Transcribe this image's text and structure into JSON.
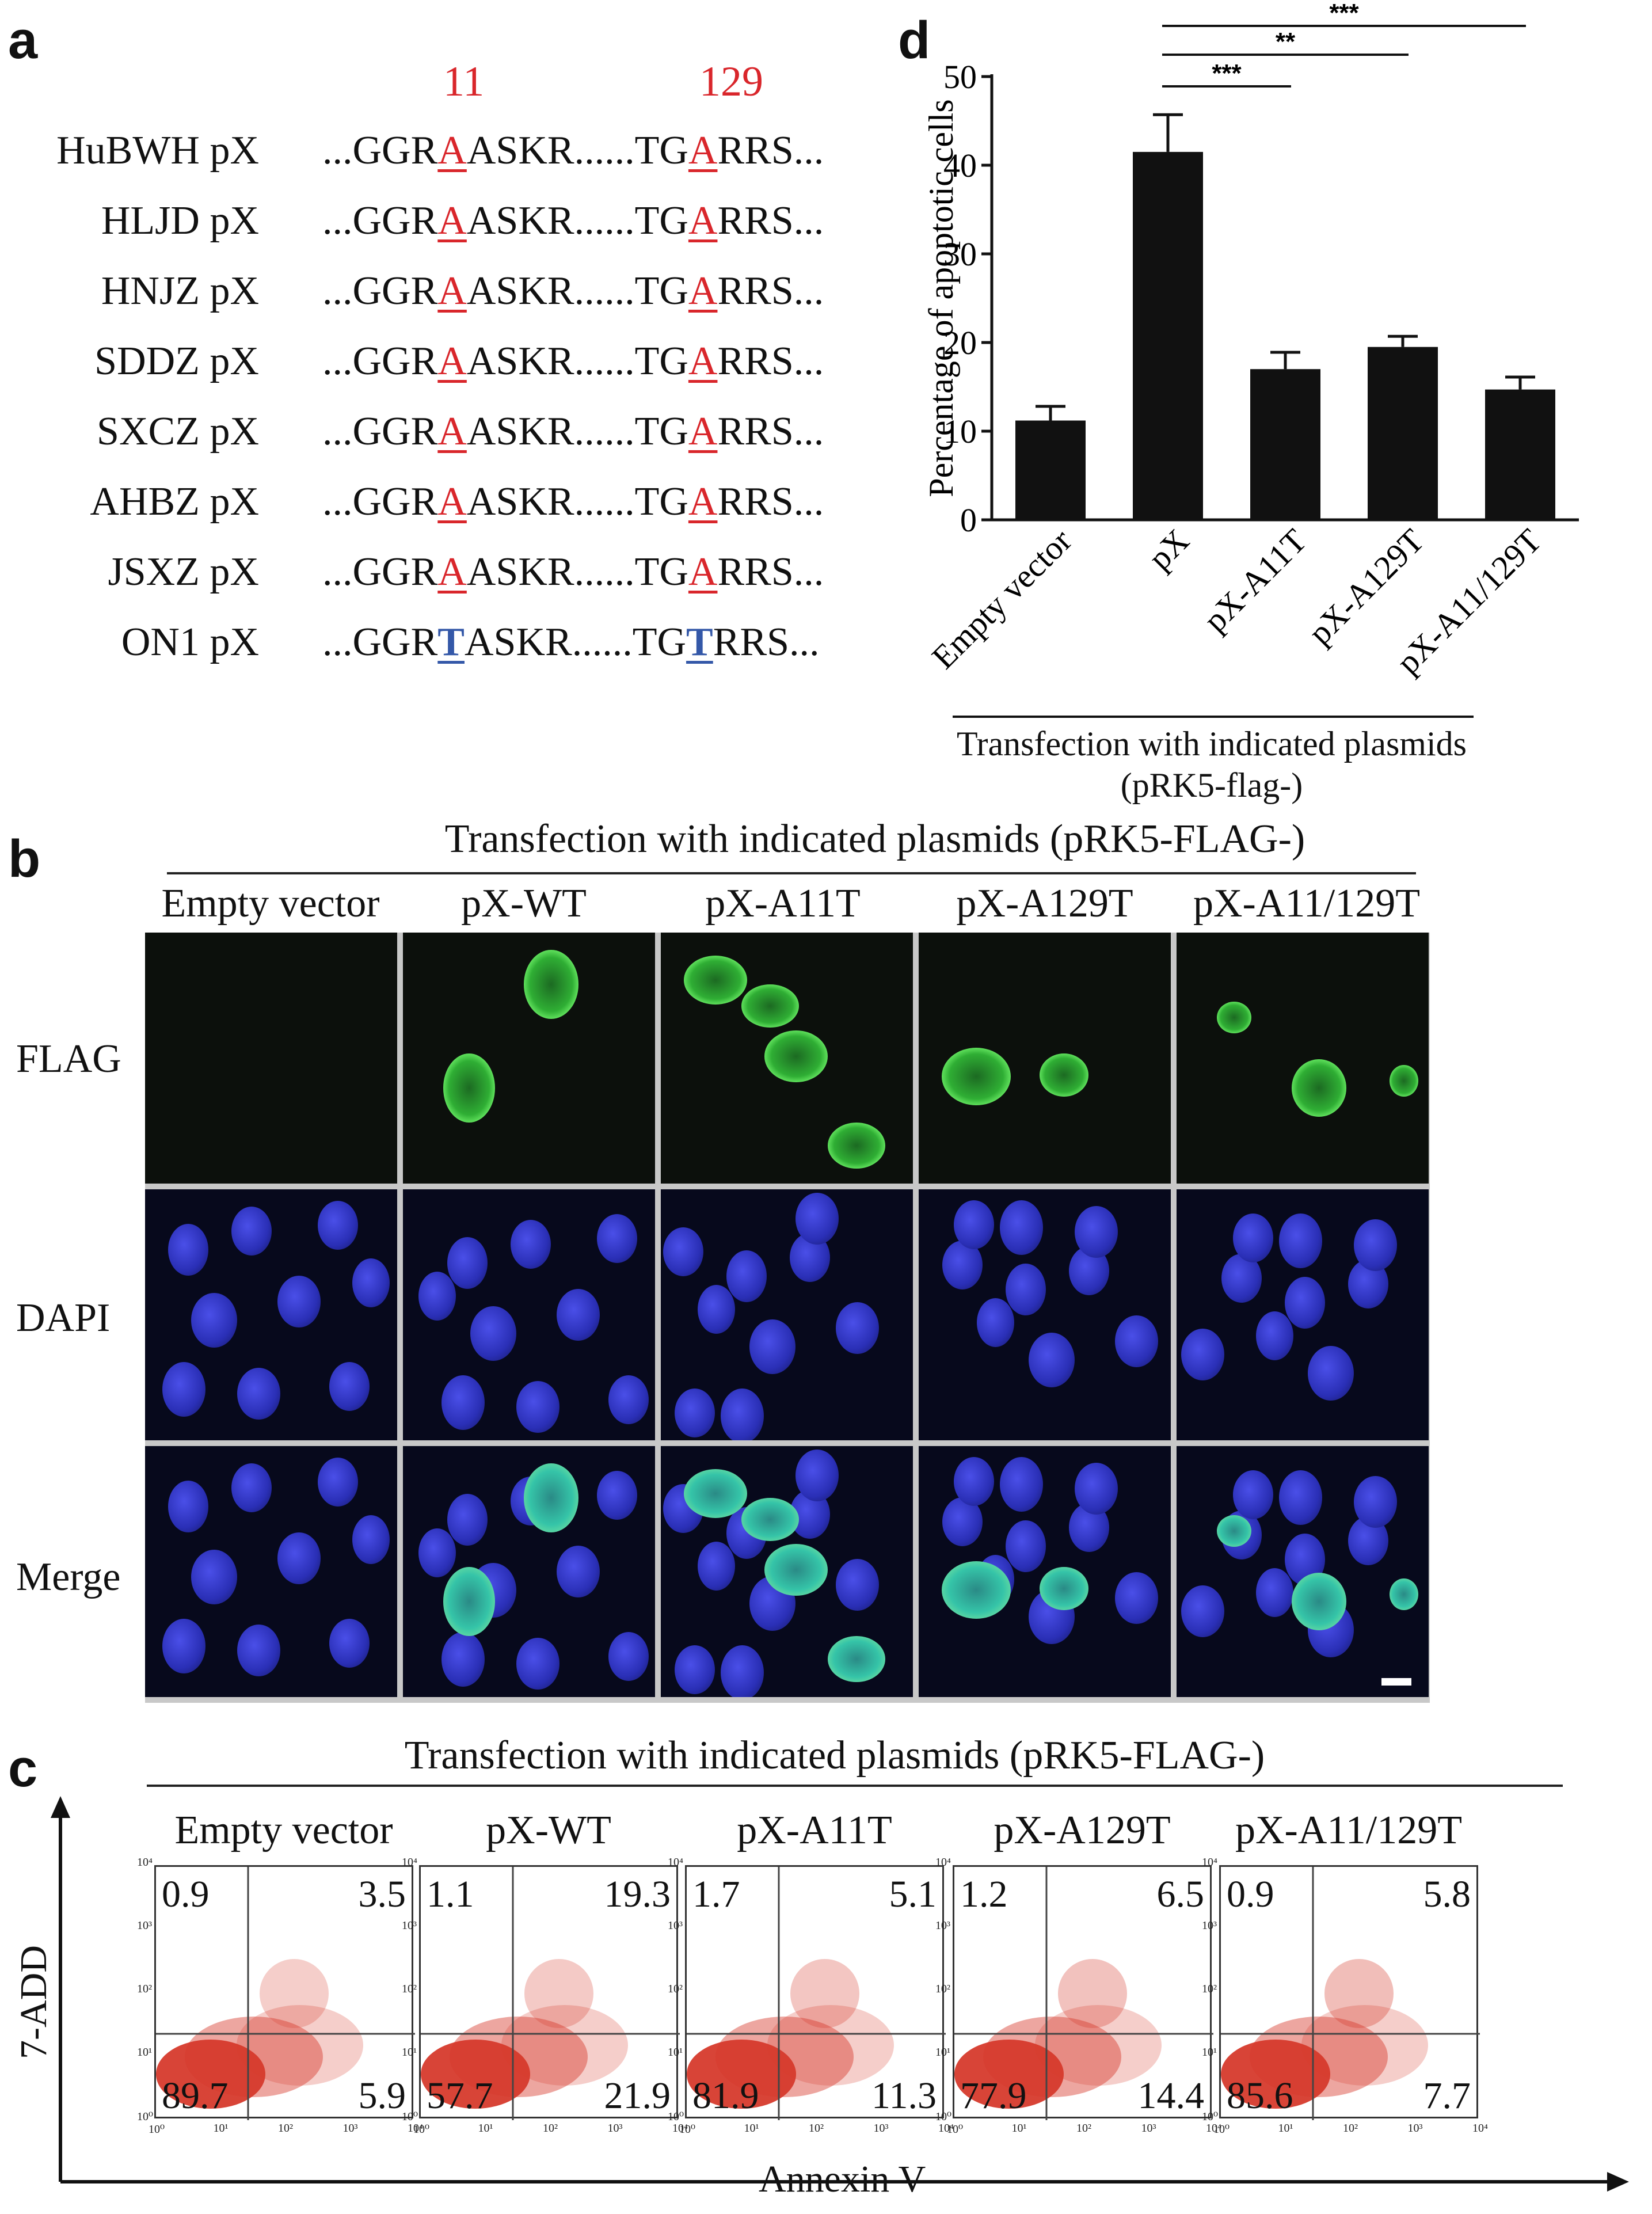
{
  "panels": {
    "a": "a",
    "b": "b",
    "c": "c",
    "d": "d"
  },
  "panel_a": {
    "positions": [
      "11",
      "129"
    ],
    "rows": [
      {
        "name": "HuBWH pX",
        "pre": "...GGR",
        "mut1": "A",
        "mid": "ASKR......TG",
        "mut2": "A",
        "post": "RRS...",
        "variant": "A"
      },
      {
        "name": "HLJD pX",
        "pre": "...GGR",
        "mut1": "A",
        "mid": "ASKR......TG",
        "mut2": "A",
        "post": "RRS...",
        "variant": "A"
      },
      {
        "name": "HNJZ pX",
        "pre": "...GGR",
        "mut1": "A",
        "mid": "ASKR......TG",
        "mut2": "A",
        "post": "RRS...",
        "variant": "A"
      },
      {
        "name": "SDDZ pX",
        "pre": "...GGR",
        "mut1": "A",
        "mid": "ASKR......TG",
        "mut2": "A",
        "post": "RRS...",
        "variant": "A"
      },
      {
        "name": "SXCZ pX",
        "pre": "...GGR",
        "mut1": "A",
        "mid": "ASKR......TG",
        "mut2": "A",
        "post": "RRS...",
        "variant": "A"
      },
      {
        "name": "AHBZ pX",
        "pre": "...GGR",
        "mut1": "A",
        "mid": "ASKR......TG",
        "mut2": "A",
        "post": "RRS...",
        "variant": "A"
      },
      {
        "name": "JSXZ pX",
        "pre": "...GGR",
        "mut1": "A",
        "mid": "ASKR......TG",
        "mut2": "A",
        "post": "RRS...",
        "variant": "A"
      },
      {
        "name": "ON1 pX",
        "pre": "...GGR",
        "mut1": "T",
        "mid": "ASKR......TG",
        "mut2": "T",
        "post": "RRS...",
        "variant": "T"
      }
    ],
    "colors": {
      "A": "#d9262b",
      "T": "#3458a8"
    }
  },
  "panel_b": {
    "header": "Transfection with indicated plasmids (pRK5-FLAG-)",
    "columns": [
      "Empty vector",
      "pX-WT",
      "pX-A11T",
      "pX-A129T",
      "pX-A11/129T"
    ],
    "rows": [
      "FLAG",
      "DAPI",
      "Merge"
    ]
  },
  "panel_c": {
    "header": "Transfection with indicated plasmids (pRK5-FLAG-)",
    "y_axis_label": "7-ADD",
    "x_axis_label": "Annexin V",
    "ticks": [
      "10⁰",
      "10¹",
      "10²",
      "10³",
      "10⁴"
    ],
    "plots": [
      {
        "title": "Empty vector",
        "ul": "0.9",
        "ur": "3.5",
        "ll": "89.7",
        "lr": "5.9"
      },
      {
        "title": "pX-WT",
        "ul": "1.1",
        "ur": "19.3",
        "ll": "57.7",
        "lr": "21.9"
      },
      {
        "title": "pX-A11T",
        "ul": "1.7",
        "ur": "5.1",
        "ll": "81.9",
        "lr": "11.3"
      },
      {
        "title": "pX-A129T",
        "ul": "1.2",
        "ur": "6.5",
        "ll": "77.9",
        "lr": "14.4"
      },
      {
        "title": "pX-A11/129T",
        "ul": "0.9",
        "ur": "5.8",
        "ll": "85.6",
        "lr": "7.7"
      }
    ]
  },
  "chart_data": {
    "type": "bar",
    "title": "",
    "categories": [
      "Empty vector",
      "pX",
      "pX-A11T",
      "pX-A129T",
      "pX-A11/129T"
    ],
    "values": [
      11.2,
      41.5,
      17.0,
      19.5,
      14.7
    ],
    "errors": [
      1.6,
      4.2,
      1.9,
      1.2,
      1.4
    ],
    "ylabel": "Percentage of apoptotic cells",
    "xlabel": "Transfection with indicated plasmids\n(pRK5-flag-)",
    "xlabel_line1": "Transfection with indicated plasmids",
    "xlabel_line2": "(pRK5-flag-)",
    "ylim": [
      0,
      50
    ],
    "yticks": [
      0,
      10,
      20,
      30,
      40,
      50
    ],
    "significance": [
      {
        "from": "pX",
        "to": "pX-A11T",
        "label": "***"
      },
      {
        "from": "pX",
        "to": "pX-A129T",
        "label": "**"
      },
      {
        "from": "pX",
        "to": "pX-A11/129T",
        "label": "***"
      }
    ],
    "bar_color": "#111111"
  }
}
